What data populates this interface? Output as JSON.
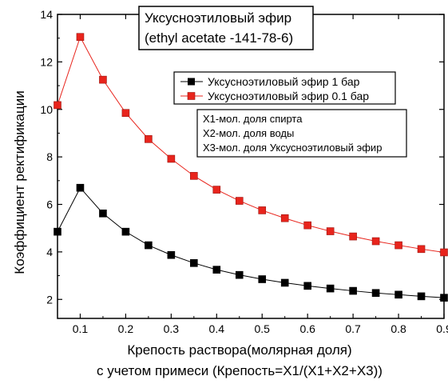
{
  "chart_data": {
    "type": "line",
    "title_lines": [
      "Уксусноэтиловый эфир",
      "(ethyl acetate -141-78-6)"
    ],
    "xlabel_lines": [
      "Крепость раствора(молярная доля)",
      "с учетом примеси (Крепость=X1/(X1+X2+X3))"
    ],
    "ylabel": "Коэффициент ректификации",
    "xlim": [
      0.05,
      0.9
    ],
    "ylim": [
      1.2,
      14
    ],
    "x_ticks": [
      0.1,
      0.2,
      0.3,
      0.4,
      0.5,
      0.6,
      0.7,
      0.8,
      0.9
    ],
    "x_tick_labels": [
      "0.1",
      "0.2",
      "0.3",
      "0.4",
      "0.5",
      "0.6",
      "0.7",
      "0.8",
      "0.9"
    ],
    "y_ticks": [
      2,
      4,
      6,
      8,
      10,
      12,
      14
    ],
    "y_tick_labels": [
      "2",
      "4",
      "6",
      "8",
      "10",
      "12",
      "14"
    ],
    "x": [
      0.05,
      0.1,
      0.15,
      0.2,
      0.25,
      0.3,
      0.35,
      0.4,
      0.45,
      0.5,
      0.55,
      0.6,
      0.65,
      0.7,
      0.75,
      0.8,
      0.85,
      0.9
    ],
    "series": [
      {
        "name": "Уксусноэтиловый эфир 1 бар",
        "color": "#000000",
        "values": [
          4.85,
          6.7,
          5.62,
          4.85,
          4.28,
          3.87,
          3.53,
          3.25,
          3.03,
          2.85,
          2.7,
          2.57,
          2.46,
          2.36,
          2.27,
          2.2,
          2.13,
          2.07
        ]
      },
      {
        "name": "Уксусноэтиловый эфир 0.1 бар",
        "color": "#e8241c",
        "values": [
          10.18,
          13.05,
          11.25,
          9.85,
          8.75,
          7.92,
          7.2,
          6.62,
          6.15,
          5.75,
          5.42,
          5.12,
          4.87,
          4.65,
          4.45,
          4.28,
          4.12,
          3.98
        ]
      }
    ],
    "notes": [
      "X1-мол. доля спирта",
      "X2-мол. доля воды",
      "X3-мол. доля Уксусноэтиловый эфир"
    ],
    "legend_position": "upper-right"
  }
}
